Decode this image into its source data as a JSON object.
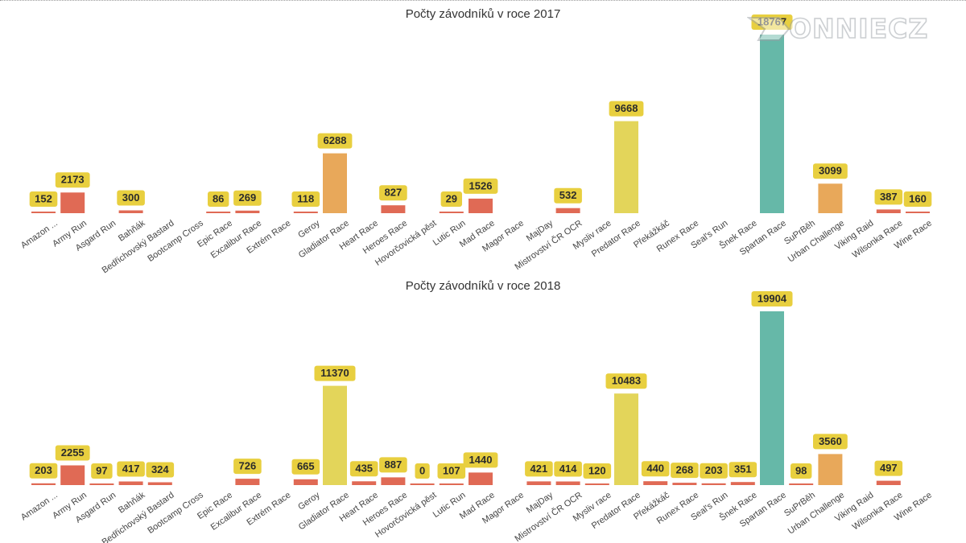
{
  "watermark": {
    "text": "ONNIECZ"
  },
  "chart_data": [
    {
      "type": "bar",
      "title": "Počty závodníků v roce 2017",
      "categories": [
        "Amazon ...",
        "Army Run",
        "Asgard Run",
        "Bahňák",
        "Bedřichovský Bastard",
        "Bootcamp Cross",
        "Epic Race",
        "Excalibur Race",
        "Extrém Race",
        "Geroy",
        "Gladiator Race",
        "Heart Race",
        "Heroes Race",
        "Hovorčovická pěst",
        "Lutic Run",
        "Mad Race",
        "Magor Race",
        "MajDay",
        "Mistrovství ČR OCR",
        "Mysliv race",
        "Predator Race",
        "Překážkáč",
        "Runex Race",
        "Seal's Run",
        "Šnek Race",
        "Spartan Race",
        "SuPrBěh",
        "Urban Challenge",
        "Viking Raid",
        "Wilsonka Race",
        "Wine Race"
      ],
      "values": [
        152,
        2173,
        null,
        300,
        null,
        null,
        86,
        269,
        null,
        118,
        6288,
        null,
        827,
        null,
        29,
        1526,
        null,
        null,
        532,
        null,
        9668,
        null,
        null,
        null,
        null,
        18767,
        null,
        3099,
        null,
        387,
        160
      ],
      "ylim": [
        0,
        18767
      ],
      "data_labels": true,
      "legend": "none",
      "grid": false
    },
    {
      "type": "bar",
      "title": "Počty závodníků v roce 2018",
      "categories": [
        "Amazon ...",
        "Army Run",
        "Asgard Run",
        "Bahňák",
        "Bedřichovský Bastard",
        "Bootcamp Cross",
        "Epic Race",
        "Excalibur Race",
        "Extrém Race",
        "Geroy",
        "Gladiator Race",
        "Heart Race",
        "Heroes Race",
        "Hovorčovická pěst",
        "Lutic Run",
        "Mad Race",
        "Magor Race",
        "MajDay",
        "Mistrovství ČR OCR",
        "Mysliv race",
        "Predator Race",
        "Překážkáč",
        "Runex Race",
        "Seal's Run",
        "Šnek Race",
        "Spartan Race",
        "SuPrBěh",
        "Urban Challenge",
        "Viking Raid",
        "Wilsonka Race",
        "Wine Race"
      ],
      "values": [
        203,
        2255,
        97,
        417,
        324,
        null,
        null,
        726,
        null,
        665,
        11370,
        435,
        887,
        0,
        107,
        1440,
        null,
        421,
        414,
        120,
        10483,
        440,
        268,
        203,
        351,
        19904,
        98,
        3560,
        null,
        497,
        null
      ],
      "ylim": [
        0,
        19904
      ],
      "data_labels": true,
      "legend": "none",
      "grid": false
    }
  ],
  "colors": {
    "low": "#e06a55",
    "mid": "#e8a85a",
    "high": "#e3d55a",
    "max": "#66b8a8",
    "label_badge": "#e8cf3f",
    "label_text": "#2b2b2b",
    "axis_text": "#444444",
    "title_text": "#333333"
  }
}
